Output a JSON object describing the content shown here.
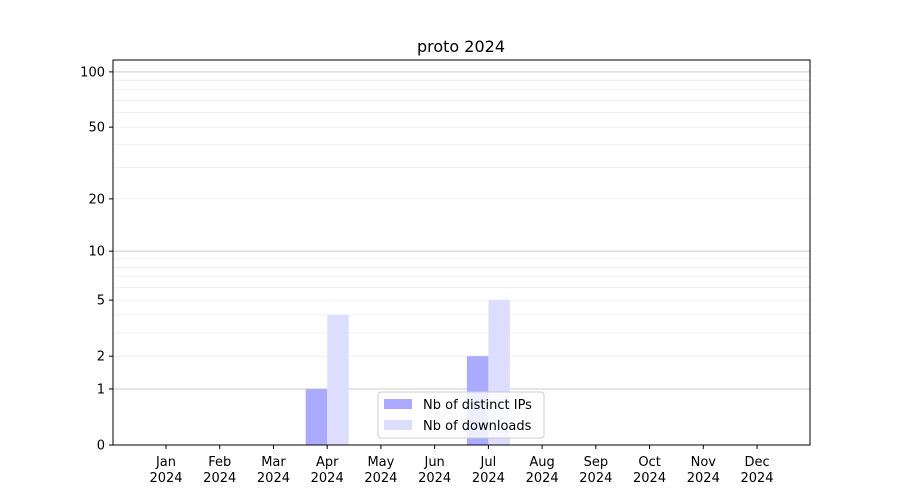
{
  "chart_data": {
    "type": "bar",
    "title": "proto 2024",
    "xlabel": "",
    "ylabel": "",
    "y_scale": "log(1+y)",
    "ylim": [
      0,
      116
    ],
    "y_ticks": [
      0,
      1,
      2,
      5,
      10,
      20,
      50,
      100
    ],
    "grid": "horizontal, major and minor",
    "legend_position": "lower-center",
    "categories": [
      "Jan\n2024",
      "Feb\n2024",
      "Mar\n2024",
      "Apr\n2024",
      "May\n2024",
      "Jun\n2024",
      "Jul\n2024",
      "Aug\n2024",
      "Sep\n2024",
      "Oct\n2024",
      "Nov\n2024",
      "Dec\n2024"
    ],
    "series": [
      {
        "name": "Nb of distinct IPs",
        "color": "#aaaaff",
        "values": [
          0,
          0,
          0,
          1,
          0,
          0,
          2,
          0,
          0,
          0,
          0,
          0
        ]
      },
      {
        "name": "Nb of downloads",
        "color": "#ddddff",
        "values": [
          0,
          0,
          0,
          4,
          0,
          0,
          5,
          0,
          0,
          0,
          0,
          0
        ]
      }
    ]
  }
}
